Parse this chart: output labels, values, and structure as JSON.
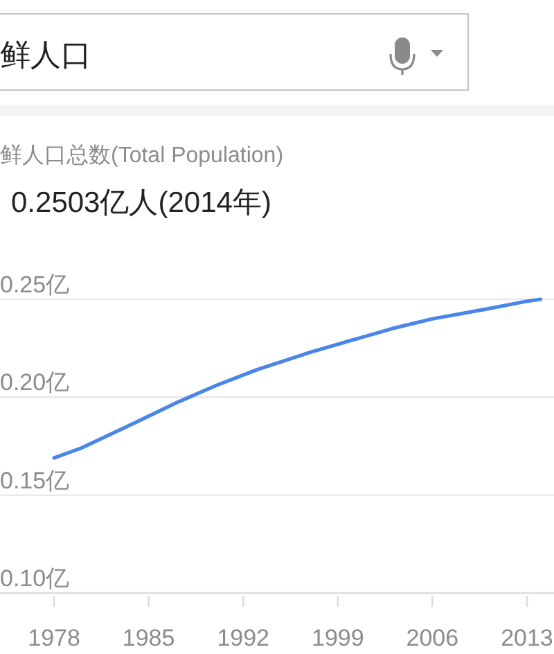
{
  "chart_data": {
    "type": "line",
    "title": "鲜人口总数(Total Population)",
    "subtitle": "0.2503亿人(2014年)",
    "annotations": [
      "鲜人口"
    ],
    "x": [
      1978,
      1980,
      1984,
      1987,
      1990,
      1993,
      1997,
      2000,
      2003,
      2006,
      2010,
      2013,
      2014
    ],
    "series": [
      {
        "color": "#4a86e8",
        "values": [
          0.169,
          0.174,
          0.187,
          0.197,
          0.206,
          0.214,
          0.223,
          0.229,
          0.235,
          0.24,
          0.245,
          0.249,
          0.25
        ]
      }
    ],
    "xlim": [
      1974,
      2015
    ],
    "xticks": [
      1978,
      1985,
      1992,
      1999,
      2006,
      2013
    ],
    "ylim": [
      0.1,
      0.25
    ],
    "yticks": [
      {
        "value": 0.1,
        "label": "0.10亿"
      },
      {
        "value": 0.15,
        "label": "0.15亿"
      },
      {
        "value": 0.2,
        "label": "0.20亿"
      },
      {
        "value": 0.25,
        "label": "0.25亿"
      }
    ],
    "grid": "y",
    "line_style": "solid"
  }
}
